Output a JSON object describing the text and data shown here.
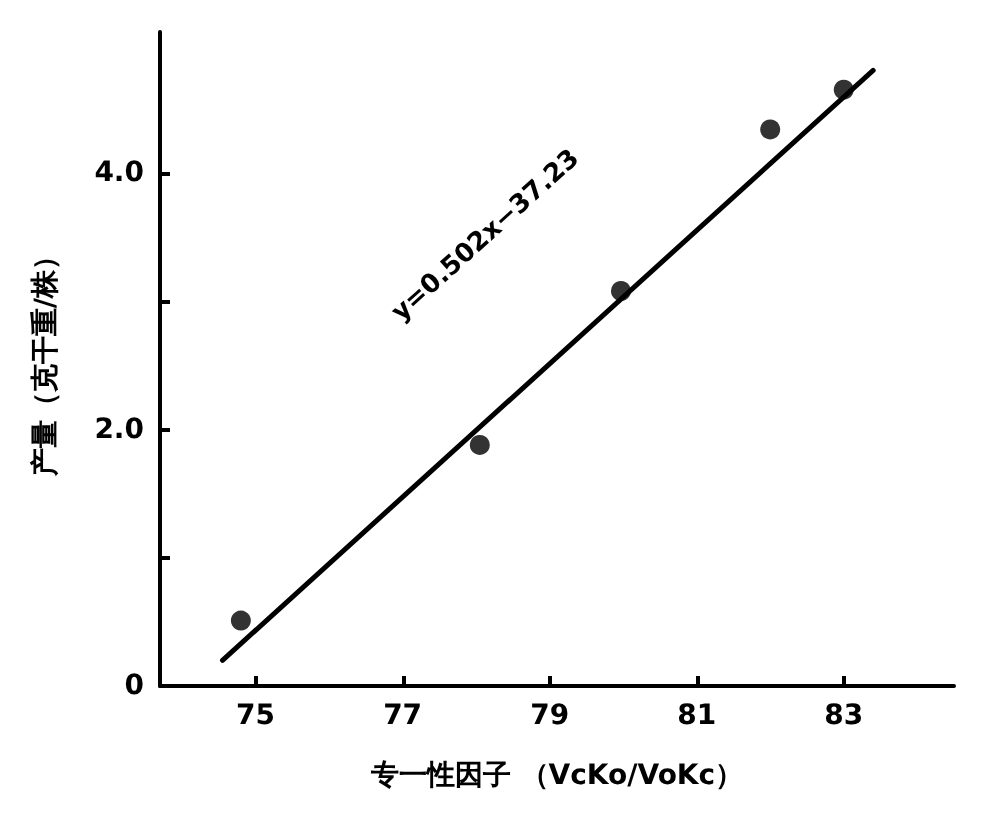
{
  "chart_data": {
    "type": "scatter",
    "xlabel": "专一性因子 （VcKo/VoKc）",
    "ylabel": "产量（克干重/株）",
    "xlim": [
      73.7,
      84.5
    ],
    "xticks": [
      75,
      77,
      79,
      81,
      83
    ],
    "ylim": [
      0,
      5.1
    ],
    "yticks": [
      0,
      {
        "value": 1,
        "label": null
      },
      {
        "value": 2,
        "label": "2.0"
      },
      {
        "value": 3,
        "label": null
      },
      {
        "value": 4,
        "label": "4.0"
      }
    ],
    "grid": false,
    "marker": "circle",
    "series": [
      {
        "color": "#000000",
        "x": [
          74.8,
          78.05,
          79.97,
          82.0,
          83.0
        ],
        "values": [
          0.51,
          1.88,
          3.08,
          4.34,
          4.65
        ]
      },
      {
        "type": "line",
        "color": "#000000",
        "marker": "none",
        "line_style": "solid",
        "x": [
          74.55,
          83.4
        ],
        "values": [
          0.2,
          4.8
        ]
      }
    ],
    "annotations": [
      "y=0.502x−37.23"
    ]
  }
}
